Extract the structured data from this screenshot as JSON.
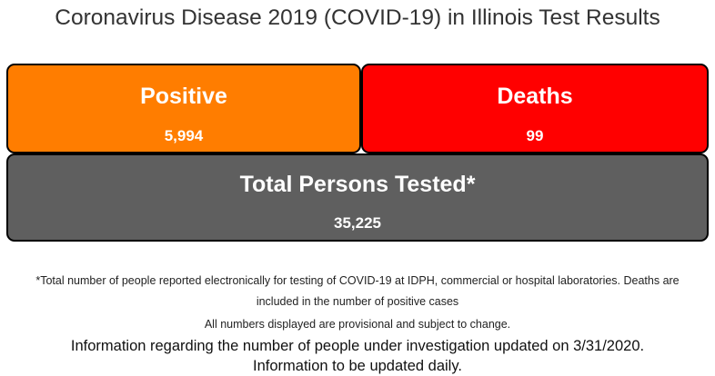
{
  "page": {
    "title": "Coronavirus Disease 2019 (COVID-19) in Illinois Test Results"
  },
  "stats": {
    "positive": {
      "label": "Positive",
      "value": "5,994",
      "color": "#ff7d00"
    },
    "deaths": {
      "label": "Deaths",
      "value": "99",
      "color": "#ff0000"
    },
    "tested": {
      "label": "Total Persons Tested*",
      "value": "35,225",
      "color": "#5f5f5f"
    }
  },
  "footnotes": {
    "line1": "*Total number of people reported electronically for testing of COVID-19 at IDPH, commercial or hospital laboratories. Deaths are",
    "line2": "included in the number of positive cases",
    "line3": "All numbers displayed are provisional and subject to change."
  },
  "info": {
    "line1": "Information regarding the number of people under investigation updated on 3/31/2020.",
    "line2": "Information to be updated daily."
  }
}
